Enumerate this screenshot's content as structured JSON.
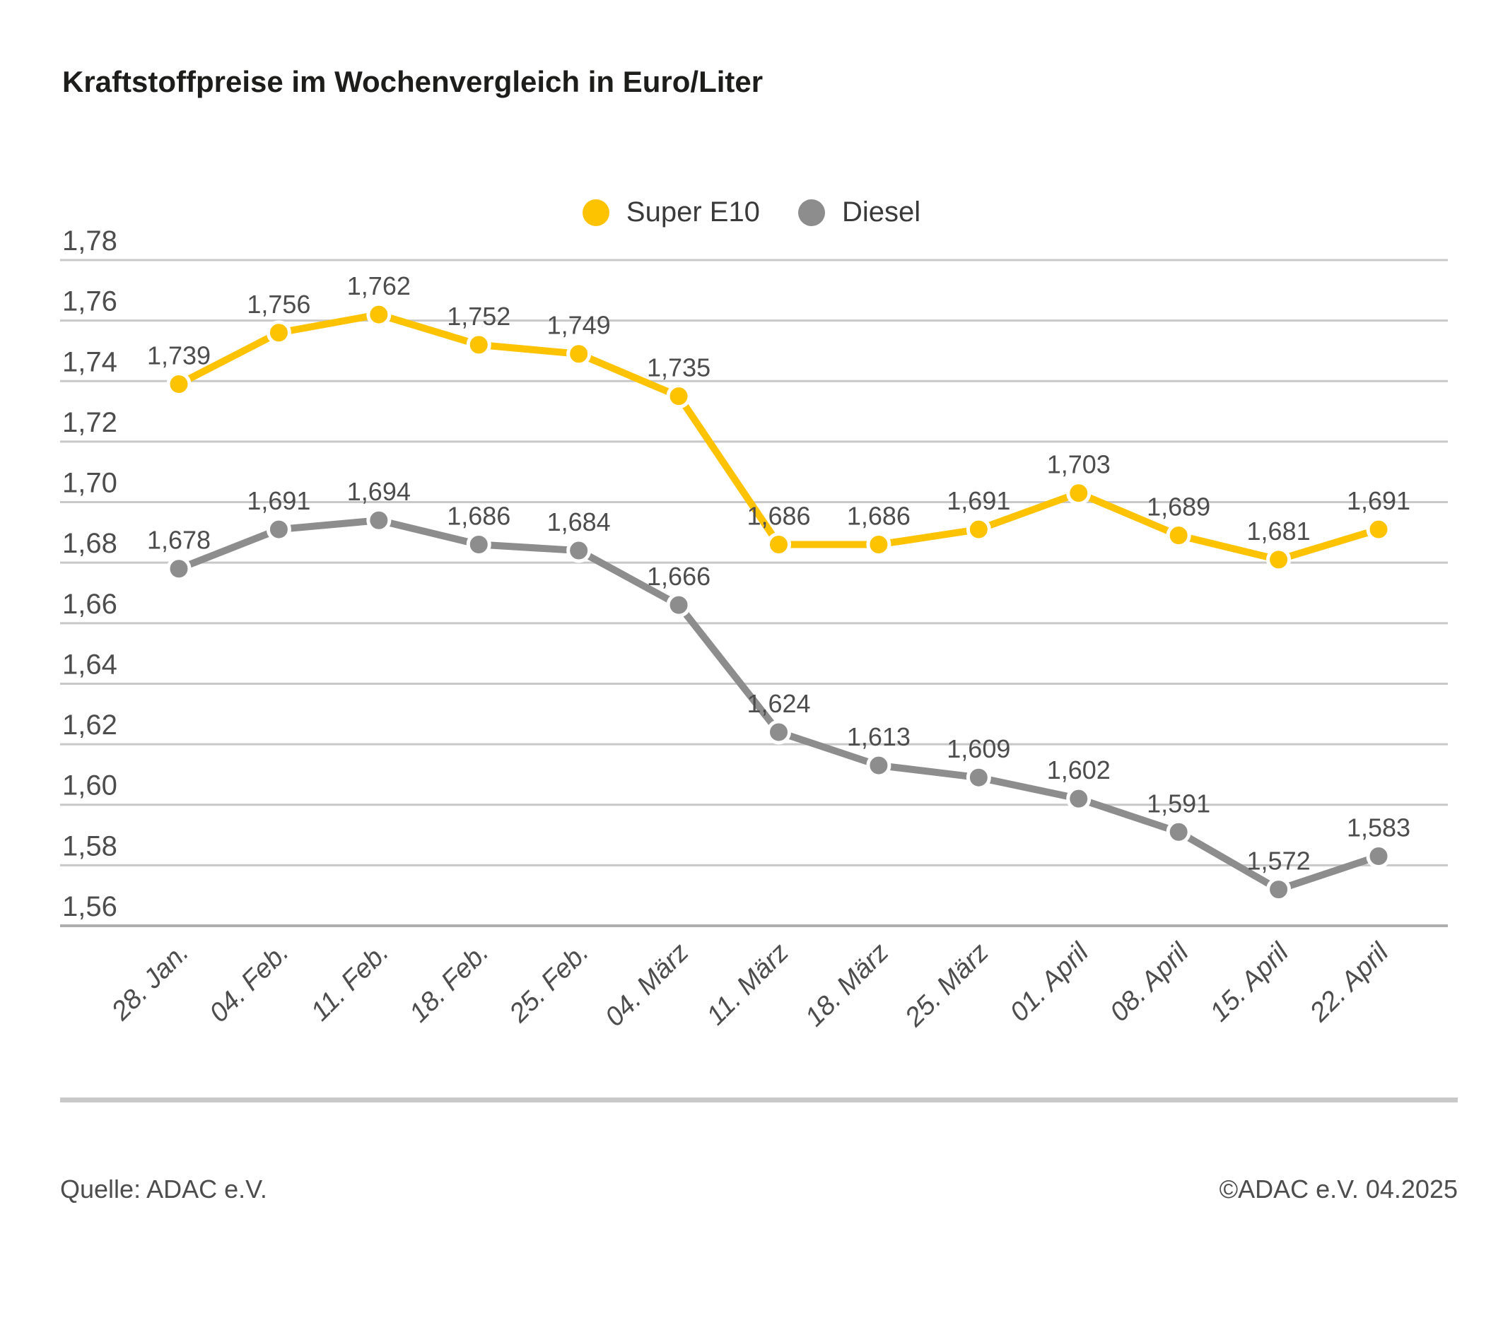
{
  "title": "Kraftstoffpreise im Wochenvergleich in Euro/Liter",
  "footer": {
    "source": "Quelle: ADAC e.V.",
    "copyright": "©ADAC e.V. 04.2025"
  },
  "colors": {
    "super_e10": "#fdc300",
    "diesel": "#8d8d8d",
    "gridline": "#c8c8c8",
    "axis_line": "#adadad",
    "text": "#4d4d4d",
    "title_text": "#1d1d1b"
  },
  "chart_data": {
    "type": "line",
    "title": "Kraftstoffpreise im Wochenvergleich in Euro/Liter",
    "xlabel": "",
    "ylabel": "Euro/Liter",
    "ylim": [
      1.56,
      1.78
    ],
    "ytick_step": 0.02,
    "grid": true,
    "legend_position": "top-center",
    "decimal_separator": ",",
    "categories": [
      "28. Jan.",
      "04. Feb.",
      "11. Feb.",
      "18. Feb.",
      "25. Feb.",
      "04. März",
      "11. März",
      "18. März",
      "25. März",
      "01. April",
      "08. April",
      "15. April",
      "22. April"
    ],
    "series": [
      {
        "name": "Super E10",
        "color": "#fdc300",
        "values": [
          1.739,
          1.756,
          1.762,
          1.752,
          1.749,
          1.735,
          1.686,
          1.686,
          1.691,
          1.703,
          1.689,
          1.681,
          1.691
        ]
      },
      {
        "name": "Diesel",
        "color": "#8d8d8d",
        "values": [
          1.678,
          1.691,
          1.694,
          1.686,
          1.684,
          1.666,
          1.624,
          1.613,
          1.609,
          1.602,
          1.591,
          1.572,
          1.583
        ]
      }
    ]
  }
}
